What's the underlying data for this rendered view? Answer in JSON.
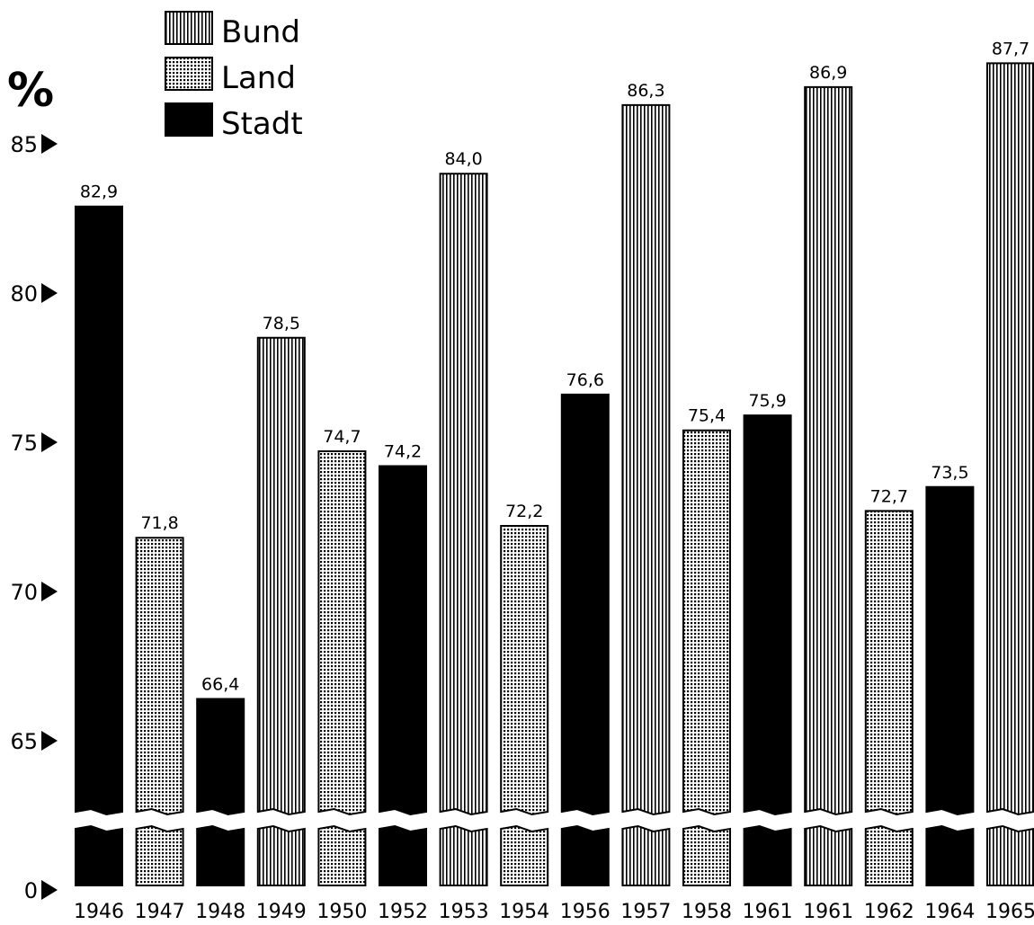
{
  "chart_data": {
    "type": "bar",
    "y_unit_label": "%",
    "y_ticks": [
      0,
      65,
      70,
      75,
      80,
      85
    ],
    "y_axis_break": true,
    "ylim": [
      0,
      88
    ],
    "legend": {
      "placement": "top-left",
      "entries": [
        {
          "key": "bund",
          "label": "Bund"
        },
        {
          "key": "land",
          "label": "Land"
        },
        {
          "key": "stadt",
          "label": "Stadt"
        }
      ]
    },
    "bars": [
      {
        "year": "1946",
        "kind": "stadt",
        "value": 82.9,
        "label": "82,9"
      },
      {
        "year": "1947",
        "kind": "land",
        "value": 71.8,
        "label": "71,8"
      },
      {
        "year": "1948",
        "kind": "stadt",
        "value": 66.4,
        "label": "66,4"
      },
      {
        "year": "1949",
        "kind": "bund",
        "value": 78.5,
        "label": "78,5"
      },
      {
        "year": "1950",
        "kind": "land",
        "value": 74.7,
        "label": "74,7"
      },
      {
        "year": "1952",
        "kind": "stadt",
        "value": 74.2,
        "label": "74,2"
      },
      {
        "year": "1953",
        "kind": "bund",
        "value": 84.0,
        "label": "84,0"
      },
      {
        "year": "1954",
        "kind": "land",
        "value": 72.2,
        "label": "72,2"
      },
      {
        "year": "1956",
        "kind": "stadt",
        "value": 76.6,
        "label": "76,6"
      },
      {
        "year": "1957",
        "kind": "bund",
        "value": 86.3,
        "label": "86,3"
      },
      {
        "year": "1958",
        "kind": "land",
        "value": 75.4,
        "label": "75,4"
      },
      {
        "year": "1961",
        "kind": "stadt",
        "value": 75.9,
        "label": "75,9"
      },
      {
        "year": "1961",
        "kind": "bund",
        "value": 86.9,
        "label": "86,9"
      },
      {
        "year": "1962",
        "kind": "land",
        "value": 72.7,
        "label": "72,7"
      },
      {
        "year": "1964",
        "kind": "stadt",
        "value": 73.5,
        "label": "73,5"
      },
      {
        "year": "1965",
        "kind": "bund",
        "value": 87.7,
        "label": "87,7"
      }
    ]
  }
}
